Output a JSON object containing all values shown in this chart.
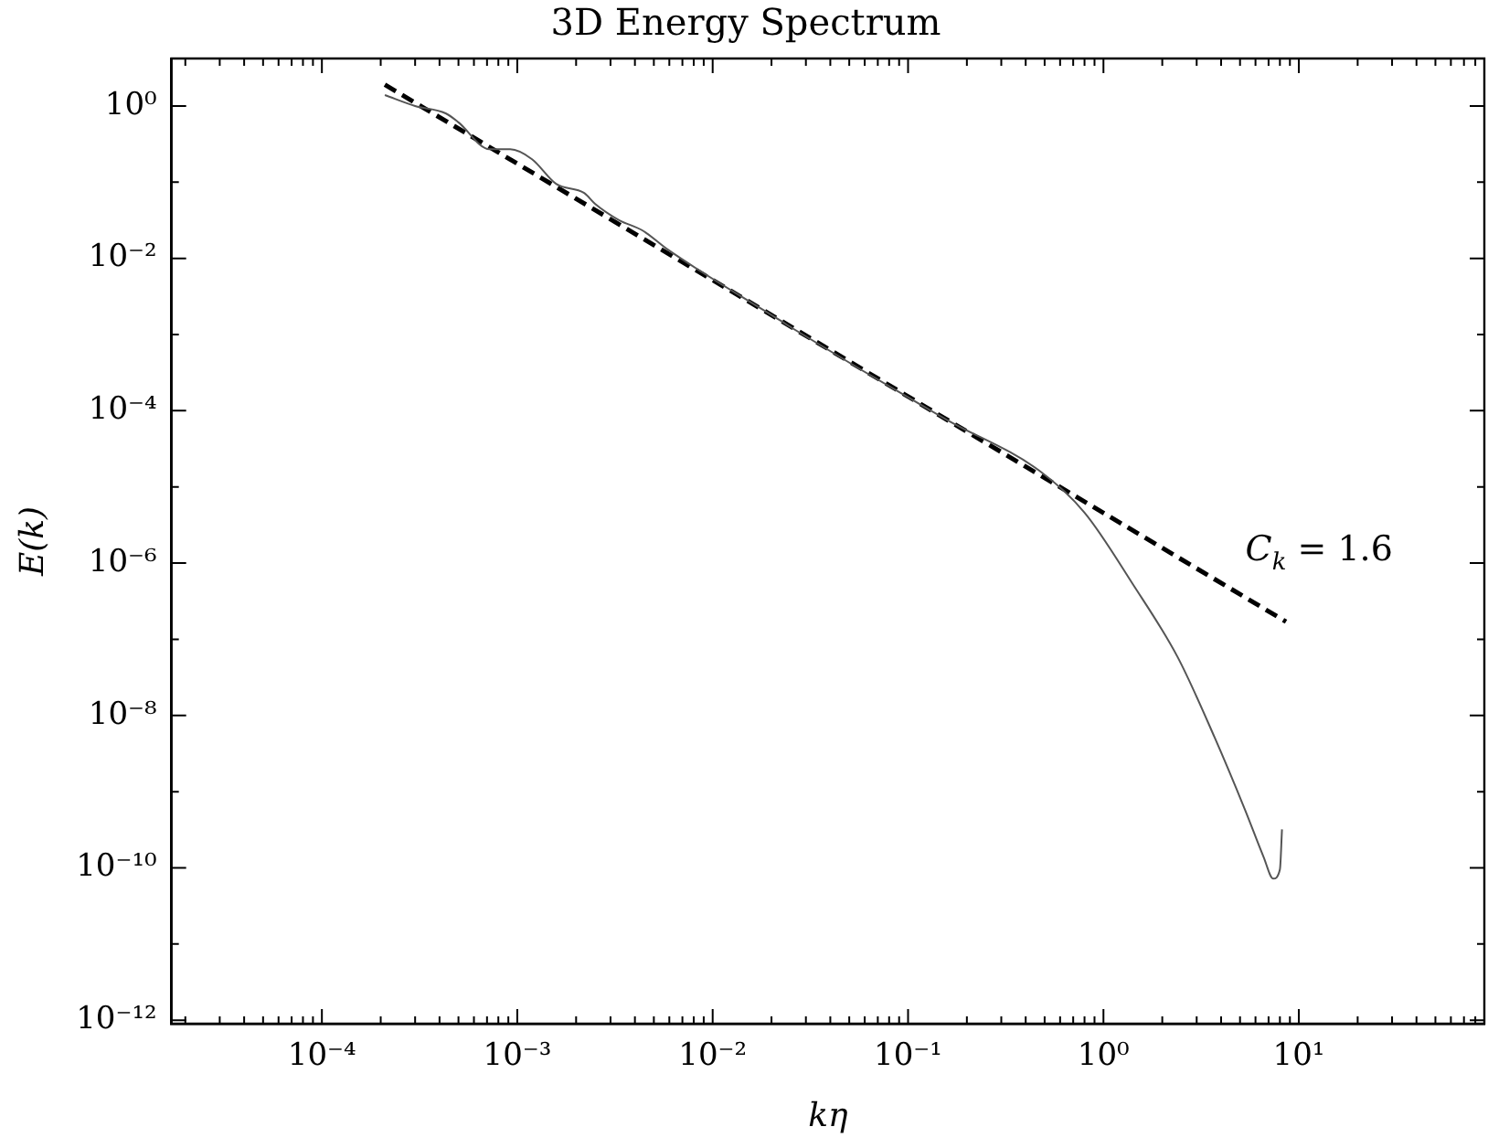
{
  "chart_data": {
    "type": "line",
    "title": "3D Energy Spectrum",
    "xlabel": "kη",
    "ylabel": "E(k)",
    "log": "xy",
    "grid": false,
    "legend": false,
    "marker": "none",
    "xlim": [
      1.7e-05,
      89
    ],
    "ylim": [
      9e-13,
      4.2
    ],
    "xticks": [
      {
        "value": 0.0001,
        "label": "10⁻⁴"
      },
      {
        "value": 0.001,
        "label": "10⁻³"
      },
      {
        "value": 0.01,
        "label": "10⁻²"
      },
      {
        "value": 0.1,
        "label": "10⁻¹"
      },
      {
        "value": 1,
        "label": "10⁰"
      },
      {
        "value": 10,
        "label": "10¹"
      }
    ],
    "yticks": [
      {
        "value": 1e-12,
        "label": "10⁻¹²"
      },
      {
        "value": 1e-10,
        "label": "10⁻¹⁰"
      },
      {
        "value": 1e-08,
        "label": "10⁻⁸"
      },
      {
        "value": 1e-06,
        "label": "10⁻⁶"
      },
      {
        "value": 0.0001,
        "label": "10⁻⁴"
      },
      {
        "value": 0.01,
        "label": "10⁻²"
      },
      {
        "value": 1,
        "label": "10⁰"
      }
    ],
    "series": [
      {
        "type": "line",
        "color": "#555555",
        "line_style": "solid",
        "x": [
          0.00021,
          0.0003,
          0.00043,
          0.0005,
          0.00072,
          0.00092,
          0.00119,
          0.00158,
          0.0022,
          0.0025,
          0.0033,
          0.0044,
          0.0059,
          0.022,
          0.026,
          0.158,
          0.47,
          0.8,
          1.42,
          2.4,
          3.7,
          5.3,
          6.6,
          7.4,
          8.0,
          8.2
        ],
        "values": [
          1.39,
          1.0,
          0.8,
          0.61,
          0.27,
          0.27,
          0.2,
          0.095,
          0.072,
          0.052,
          0.032,
          0.023,
          0.013,
          0.00155,
          0.00118,
          7.6e-05,
          1.63e-05,
          4.6e-06,
          5.2e-07,
          5.8e-08,
          5.2e-09,
          5.8e-10,
          1.39e-10,
          7.2e-11,
          9.5e-11,
          3.2e-10
        ]
      },
      {
        "type": "line",
        "color": "#000000",
        "line_style": "dashed",
        "x": [
          0.00021,
          8.6
        ],
        "values": [
          1.9,
          1.7e-07
        ]
      }
    ],
    "annotations": [
      "C$_{k}$ = 1.6"
    ]
  }
}
